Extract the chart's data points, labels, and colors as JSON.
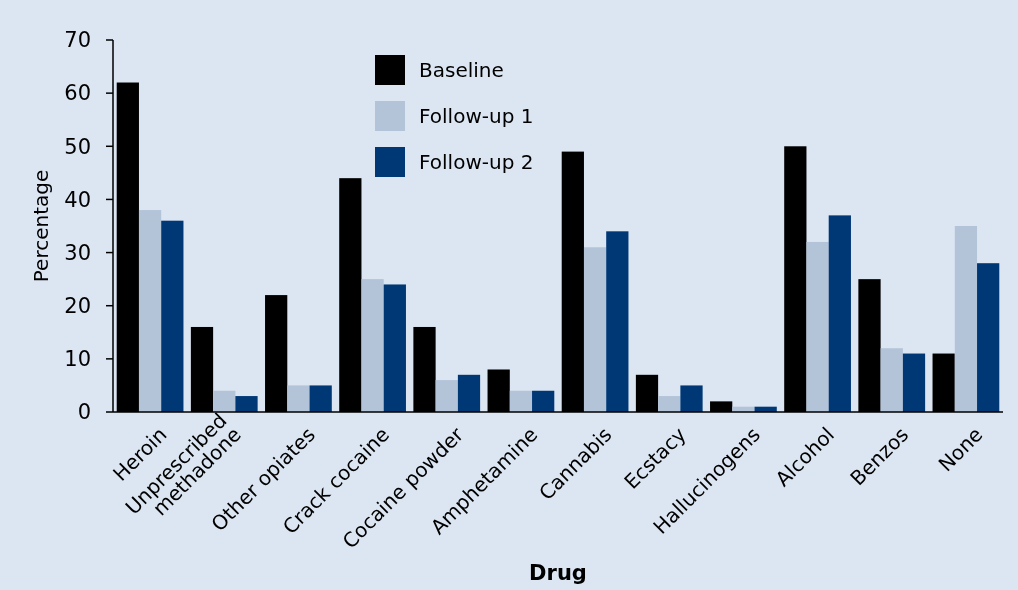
{
  "chart_data": {
    "type": "bar",
    "xlabel": "Drug",
    "ylabel": "Percentage",
    "categories": [
      "Heroin",
      "Unprescribed\nmethadone",
      "Other opiates",
      "Crack cocaine",
      "Cocaine powder",
      "Amphetamine",
      "Cannabis",
      "Ecstacy",
      "Hallucinogens",
      "Alcohol",
      "Benzos",
      "None"
    ],
    "series": [
      {
        "name": "Baseline",
        "color": "#000000",
        "values": [
          62,
          16,
          22,
          44,
          16,
          8,
          49,
          7,
          2,
          50,
          25,
          11
        ]
      },
      {
        "name": "Follow-up 1",
        "color": "#b3c3d8",
        "values": [
          38,
          4,
          5,
          25,
          6,
          4,
          31,
          3,
          1,
          32,
          12,
          35
        ]
      },
      {
        "name": "Follow-up 2",
        "color": "#003876",
        "values": [
          36,
          3,
          5,
          24,
          7,
          4,
          34,
          5,
          1,
          37,
          11,
          28
        ]
      }
    ],
    "ylim": [
      0,
      70
    ],
    "yticks": [
      0,
      10,
      20,
      30,
      40,
      50,
      60,
      70
    ],
    "grid": false,
    "legend": "top"
  }
}
